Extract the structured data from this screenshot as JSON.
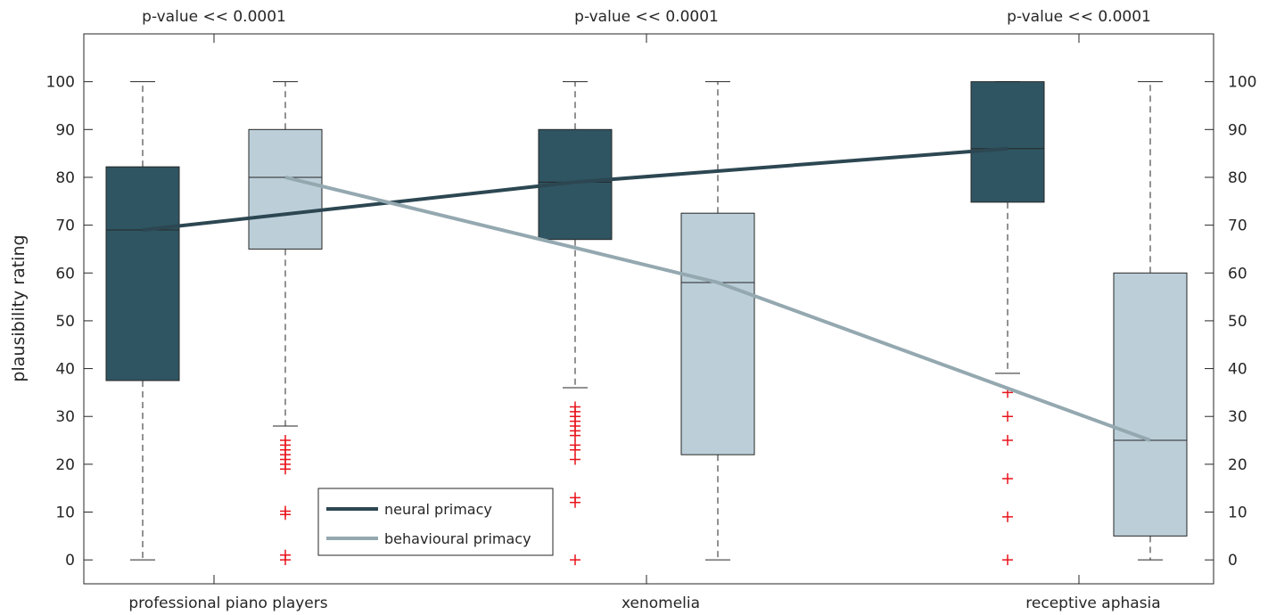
{
  "chart_data": {
    "type": "box",
    "ylabel": "plausibility rating",
    "ylim": [
      -5,
      110
    ],
    "yticks": [
      0,
      10,
      20,
      30,
      40,
      50,
      60,
      70,
      80,
      90,
      100
    ],
    "y_axis_right": true,
    "grid": false,
    "legend_position": "bottom-center",
    "categories": [
      "professional piano players",
      "xenomelia",
      "receptive aphasia"
    ],
    "pvalues": [
      "p-value << 0.0001",
      "p-value << 0.0001",
      "p-value << 0.0001"
    ],
    "series": [
      {
        "name": "neural primacy",
        "box_color": "#2f5562",
        "line_color": "#2c4752",
        "boxes": [
          {
            "whisker_low": 0,
            "q1": 37.5,
            "median": 69,
            "q3": 82.2,
            "whisker_high": 100,
            "outliers": []
          },
          {
            "whisker_low": 36,
            "q1": 67,
            "median": 79,
            "q3": 90,
            "whisker_high": 100,
            "outliers": [
              0,
              12,
              13,
              21,
              23,
              24,
              26,
              27,
              28,
              29,
              30,
              31,
              32
            ]
          },
          {
            "whisker_low": 39,
            "q1": 74.8,
            "median": 86,
            "q3": 100,
            "whisker_high": 100,
            "outliers": [
              0,
              9,
              17,
              25,
              30,
              35
            ]
          }
        ]
      },
      {
        "name": "behavioural primacy",
        "box_color": "#bccfd9",
        "line_color": "#94a8b0",
        "boxes": [
          {
            "whisker_low": 28,
            "q1": 65,
            "median": 80,
            "q3": 90,
            "whisker_high": 100,
            "outliers": [
              0,
              1,
              9.5,
              10.2,
              19,
              20,
              21,
              22,
              23,
              24,
              25
            ]
          },
          {
            "whisker_low": 0,
            "q1": 22,
            "median": 58,
            "q3": 72.5,
            "whisker_high": 100,
            "outliers": []
          },
          {
            "whisker_low": 0,
            "q1": 5,
            "median": 25,
            "q3": 60,
            "whisker_high": 100,
            "outliers": []
          }
        ]
      }
    ],
    "outlier_color": "#e8141c"
  }
}
